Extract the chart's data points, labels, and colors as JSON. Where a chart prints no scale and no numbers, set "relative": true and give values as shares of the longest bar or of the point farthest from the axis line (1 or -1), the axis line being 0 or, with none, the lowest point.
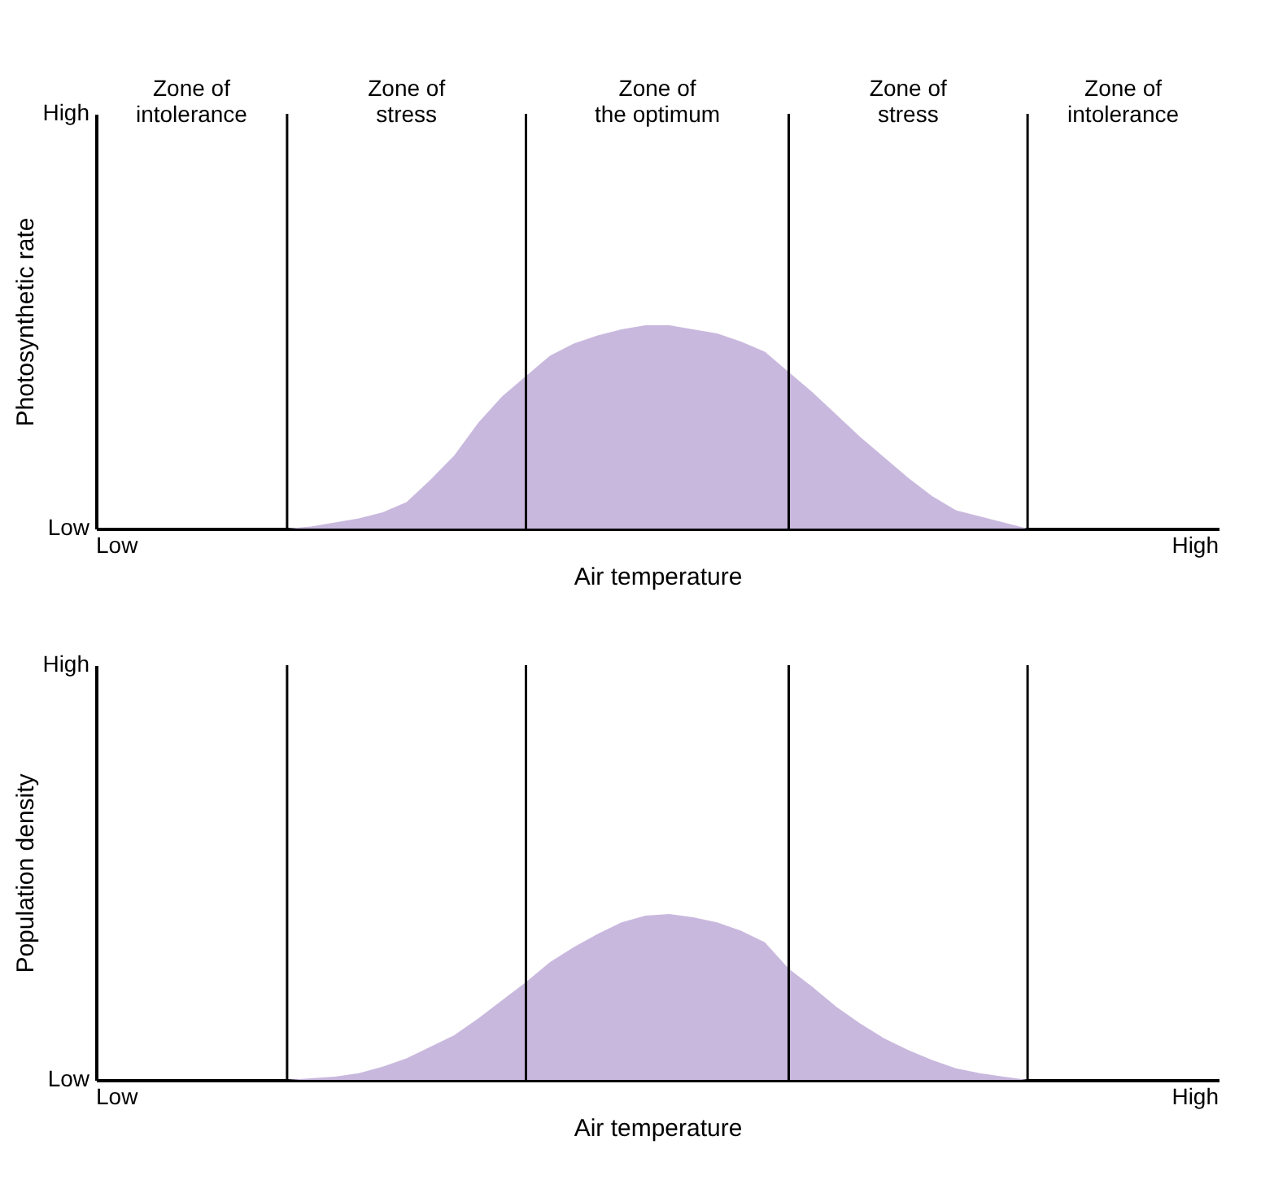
{
  "chart_data": [
    {
      "type": "area",
      "relative": true,
      "ylabel": "Photosynthetic rate",
      "xlabel": "Air temperature",
      "grid": "x",
      "categories": [
        null,
        null,
        null,
        null,
        null,
        null,
        null,
        null,
        null,
        null,
        null,
        null,
        null,
        null,
        null,
        null,
        null,
        null,
        null,
        null,
        null,
        null,
        null,
        null,
        null,
        null,
        null,
        null,
        null,
        null,
        null,
        null,
        null,
        null,
        null,
        null,
        null,
        null,
        null,
        null,
        null,
        null,
        null,
        null,
        null,
        null,
        null,
        null
      ],
      "series": [
        {
          "color": "#c9b8de",
          "values": [
            0,
            0,
            0,
            0,
            0,
            0,
            0,
            0,
            0,
            0.01,
            0.03,
            0.05,
            0.08,
            0.13,
            0.24,
            0.36,
            0.52,
            0.65,
            0.75,
            0.85,
            0.91,
            0.95,
            0.98,
            1,
            1,
            0.98,
            0.96,
            0.92,
            0.87,
            0.77,
            0.67,
            0.56,
            0.45,
            0.35,
            0.25,
            0.16,
            0.09,
            0.06,
            0.03,
            0,
            0,
            0,
            0,
            0,
            0,
            0,
            0,
            0
          ]
        }
      ],
      "annotations": [
        "High",
        "Low",
        "Low",
        "High",
        "Zone of intolerance",
        "Zone of stress",
        "Zone of the optimum",
        "Zone of stress",
        "Zone of intolerance"
      ]
    },
    {
      "type": "area",
      "relative": true,
      "ylabel": "Population density",
      "xlabel": "Air temperature",
      "grid": "x",
      "categories": [
        null,
        null,
        null,
        null,
        null,
        null,
        null,
        null,
        null,
        null,
        null,
        null,
        null,
        null,
        null,
        null,
        null,
        null,
        null,
        null,
        null,
        null,
        null,
        null,
        null,
        null,
        null,
        null,
        null,
        null,
        null,
        null,
        null,
        null,
        null,
        null,
        null,
        null,
        null,
        null,
        null,
        null,
        null,
        null,
        null,
        null,
        null,
        null
      ],
      "series": [
        {
          "color": "#c9b8de",
          "values": [
            0,
            0,
            0,
            0,
            0,
            0,
            0,
            0,
            0,
            0.01,
            0.02,
            0.04,
            0.08,
            0.13,
            0.2,
            0.27,
            0.37,
            0.48,
            0.59,
            0.71,
            0.8,
            0.88,
            0.95,
            0.99,
            1,
            0.98,
            0.95,
            0.9,
            0.83,
            0.67,
            0.56,
            0.44,
            0.34,
            0.25,
            0.18,
            0.12,
            0.07,
            0.04,
            0.02,
            0,
            0,
            0,
            0,
            0,
            0,
            0,
            0,
            0
          ]
        }
      ],
      "annotations": [
        "High",
        "Low",
        "Low",
        "High"
      ]
    }
  ]
}
